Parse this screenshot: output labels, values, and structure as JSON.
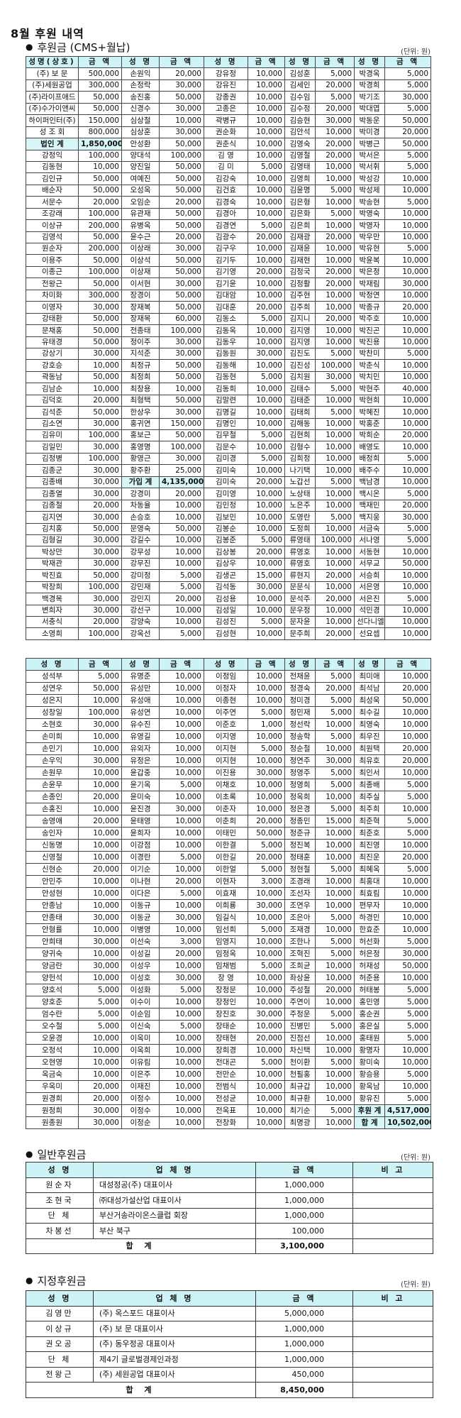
{
  "title": "8월 후원 내역",
  "cms": {
    "heading": "후원금 (CMS+월납)",
    "unit": "(단위: 원)",
    "headers": [
      "성명(상호)",
      "금 액",
      "성 명",
      "금 액",
      "성 명",
      "금 액",
      "성 명",
      "금 액",
      "성 명",
      "금 액"
    ],
    "headers2": [
      "성 명",
      "금 액",
      "성 명",
      "금 액",
      "성 명",
      "금 액",
      "성 명",
      "금 액",
      "성 명",
      "금 액"
    ],
    "rows1": [
      [
        "(주) 보 문",
        "500,000",
        "손원익",
        "20,000",
        "강유정",
        "10,000",
        "김성훈",
        "5,000",
        "박경옥",
        "5,000"
      ],
      [
        "(주)세원공업",
        "300,000",
        "손정락",
        "30,000",
        "강유진",
        "10,000",
        "김세인",
        "20,000",
        "박경희",
        "5,000"
      ],
      [
        "(주)라이프애드",
        "50,000",
        "송진홍",
        "50,000",
        "강종권",
        "10,000",
        "김수임",
        "5,000",
        "박기조",
        "30,000"
      ],
      [
        "(주)수가이앤씨",
        "50,000",
        "신경수",
        "30,000",
        "고종은",
        "10,000",
        "김수정",
        "20,000",
        "박대엽",
        "5,000"
      ],
      [
        "하이퍼인터(주)",
        "150,000",
        "심상철",
        "10,000",
        "곽병규",
        "10,000",
        "김승현",
        "30,000",
        "박동운",
        "50,000"
      ],
      [
        "성 조 회",
        "800,000",
        "심상훈",
        "30,000",
        "권순화",
        "10,000",
        "김안석",
        "10,000",
        "박미경",
        "20,000"
      ],
      [
        "법인 계",
        "1,850,000",
        "안성환",
        "50,000",
        "권춘식",
        "10,000",
        "김영숙",
        "20,000",
        "박병근",
        "50,000"
      ],
      [
        "강정익",
        "100,000",
        "양대석",
        "100,000",
        "김 영",
        "10,000",
        "김영철",
        "20,000",
        "박서은",
        "5,000"
      ],
      [
        "김동현",
        "10,000",
        "양진일",
        "50,000",
        "김 미",
        "5,000",
        "김영태",
        "10,000",
        "박서휘",
        "5,000"
      ],
      [
        "김인규",
        "50,000",
        "여예진",
        "50,000",
        "김강숙",
        "10,000",
        "김영희",
        "10,000",
        "박성강",
        "10,000"
      ],
      [
        "배순자",
        "50,000",
        "오성옥",
        "50,000",
        "김건효",
        "10,000",
        "김윤명",
        "5,000",
        "박성제",
        "10,000"
      ],
      [
        "서문수",
        "20,000",
        "오임순",
        "20,000",
        "김경숙",
        "10,000",
        "김은형",
        "10,000",
        "박송현",
        "5,000"
      ],
      [
        "조강래",
        "100,000",
        "유관재",
        "50,000",
        "김경아",
        "10,000",
        "김은화",
        "5,000",
        "박영숙",
        "10,000"
      ],
      [
        "이상규",
        "200,000",
        "유병옥",
        "50,000",
        "김경연",
        "5,000",
        "김은희",
        "10,000",
        "박영자",
        "10,000"
      ],
      [
        "김영석",
        "50,000",
        "윤수근",
        "20,000",
        "김광수",
        "20,000",
        "김재광",
        "20,000",
        "박우만",
        "10,000"
      ],
      [
        "원순자",
        "200,000",
        "이상래",
        "30,000",
        "김구우",
        "10,000",
        "김재윤",
        "10,000",
        "박유현",
        "5,000"
      ],
      [
        "이용주",
        "50,000",
        "이상석",
        "50,000",
        "김기두",
        "10,000",
        "김재현",
        "10,000",
        "박윤복",
        "10,000"
      ],
      [
        "이종근",
        "100,000",
        "이상재",
        "50,000",
        "김기영",
        "20,000",
        "김정국",
        "20,000",
        "박은정",
        "10,000"
      ],
      [
        "전왕근",
        "50,000",
        "이서현",
        "30,000",
        "김기윤",
        "10,000",
        "김정활",
        "20,000",
        "박재림",
        "30,000"
      ],
      [
        "차미화",
        "300,000",
        "장경이",
        "50,000",
        "김대암",
        "10,000",
        "김주현",
        "10,000",
        "박정연",
        "10,000"
      ],
      [
        "이영자",
        "30,000",
        "장재복",
        "50,000",
        "김대훈",
        "20,000",
        "김주희",
        "10,000",
        "박종규",
        "20,000"
      ],
      [
        "강태환",
        "50,000",
        "장재목",
        "60,000",
        "김동소",
        "5,000",
        "김지니",
        "20,000",
        "박주호",
        "10,000"
      ],
      [
        "문채홍",
        "50,000",
        "전종태",
        "100,000",
        "김동옥",
        "10,000",
        "김지영",
        "10,000",
        "박진곤",
        "10,000"
      ],
      [
        "유태경",
        "50,000",
        "정이주",
        "30,000",
        "김동우",
        "10,000",
        "김지영",
        "10,000",
        "박진용",
        "10,000"
      ],
      [
        "강상기",
        "30,000",
        "지석준",
        "30,000",
        "김동원",
        "30,000",
        "김진도",
        "5,000",
        "박찬미",
        "5,000"
      ],
      [
        "강호승",
        "10,000",
        "최정규",
        "50,000",
        "김동해",
        "10,000",
        "김진성",
        "100,000",
        "박춘식",
        "10,000"
      ],
      [
        "곽동남",
        "50,000",
        "최정희",
        "50,000",
        "김동현",
        "5,000",
        "김치원",
        "30,000",
        "박치민",
        "10,000"
      ],
      [
        "김남순",
        "10,000",
        "최창용",
        "10,000",
        "김동희",
        "10,000",
        "김태수",
        "5,000",
        "박현주",
        "40,000"
      ],
      [
        "김덕호",
        "20,000",
        "최형택",
        "50,000",
        "김말련",
        "10,000",
        "김태준",
        "10,000",
        "박현희",
        "10,000"
      ],
      [
        "김석준",
        "50,000",
        "한상우",
        "30,000",
        "김명길",
        "10,000",
        "김태희",
        "5,000",
        "박혜진",
        "10,000"
      ],
      [
        "김소연",
        "30,000",
        "홍귀연",
        "150,000",
        "김명인",
        "10,000",
        "김해동",
        "10,000",
        "박홍준",
        "10,000"
      ],
      [
        "김유미",
        "100,000",
        "홍보근",
        "50,000",
        "김무철",
        "5,000",
        "김현희",
        "10,000",
        "박희순",
        "20,000"
      ],
      [
        "김일민",
        "30,000",
        "홍영명",
        "100,000",
        "김문수",
        "10,000",
        "김형수",
        "10,000",
        "배영도",
        "10,000"
      ],
      [
        "김정병",
        "100,000",
        "황영근",
        "30,000",
        "김미경",
        "5,000",
        "김희정",
        "10,000",
        "배정희",
        "5,000"
      ],
      [
        "김종군",
        "30,000",
        "황주환",
        "25,000",
        "김미숙",
        "10,000",
        "나기택",
        "10,000",
        "배주수",
        "10,000"
      ],
      [
        "김종배",
        "30,000",
        "가입 계",
        "4,135,000",
        "김미숙",
        "20,000",
        "노갑선",
        "5,000",
        "백남경",
        "10,000"
      ],
      [
        "김종열",
        "30,000",
        "강경미",
        "20,000",
        "김미영",
        "10,000",
        "노상태",
        "10,000",
        "백시온",
        "5,000"
      ],
      [
        "김종철",
        "20,000",
        "차동율",
        "10,000",
        "김민정",
        "10,000",
        "노은주",
        "10,000",
        "백재민",
        "20,000"
      ],
      [
        "김지연",
        "30,000",
        "손승호",
        "10,000",
        "김보민",
        "10,000",
        "도영란",
        "5,000",
        "백지웅",
        "30,000"
      ],
      [
        "김치홍",
        "50,000",
        "문영숙",
        "50,000",
        "김봉순",
        "10,000",
        "도정희",
        "10,000",
        "서금숙",
        "5,000"
      ],
      [
        "김형길",
        "30,000",
        "강길수",
        "10,000",
        "김봉준",
        "5,000",
        "류영태",
        "100,000",
        "서나영",
        "5,000"
      ],
      [
        "박상만",
        "30,000",
        "강무성",
        "10,000",
        "김상봉",
        "20,000",
        "류영호",
        "10,000",
        "서동현",
        "10,000"
      ],
      [
        "박재관",
        "30,000",
        "강무진",
        "10,000",
        "김상우",
        "10,000",
        "류영호",
        "10,000",
        "서무교",
        "50,000"
      ],
      [
        "박진효",
        "50,000",
        "강미정",
        "5,000",
        "김생곤",
        "15,000",
        "류현지",
        "20,000",
        "서승희",
        "10,000"
      ],
      [
        "박창희",
        "100,000",
        "강민재",
        "5,000",
        "김석동",
        "30,000",
        "문문식",
        "10,000",
        "서은영",
        "10,000"
      ],
      [
        "백경목",
        "30,000",
        "강민지",
        "20,000",
        "김성용",
        "10,000",
        "문석주",
        "20,000",
        "서은진",
        "5,000"
      ],
      [
        "변희자",
        "30,000",
        "강선구",
        "10,000",
        "김성일",
        "10,000",
        "문우정",
        "10,000",
        "석민경",
        "10,000"
      ],
      [
        "서충식",
        "20,000",
        "강양숙",
        "10,000",
        "김성진",
        "5,000",
        "문자윤",
        "10,000",
        "선다니엘",
        "10,000"
      ],
      [
        "소영희",
        "100,000",
        "강옥선",
        "5,000",
        "김성현",
        "10,000",
        "문주희",
        "20,000",
        "선요셉",
        "10,000"
      ]
    ],
    "rows2": [
      [
        "성석부",
        "5,000",
        "유명준",
        "10,000",
        "이정임",
        "10,000",
        "전채윤",
        "5,000",
        "최미애",
        "10,000"
      ],
      [
        "성연우",
        "50,000",
        "유성만",
        "10,000",
        "이정자",
        "10,000",
        "정경숙",
        "20,000",
        "최석남",
        "20,000"
      ],
      [
        "성은지",
        "10,000",
        "유성애",
        "10,000",
        "이종현",
        "10,000",
        "정미경",
        "5,000",
        "최성욱",
        "50,000"
      ],
      [
        "성창일",
        "100,000",
        "유성연",
        "10,000",
        "이주연",
        "5,000",
        "정민재",
        "5,000",
        "최수길",
        "10,000"
      ],
      [
        "소현호",
        "30,000",
        "유수진",
        "10,000",
        "이준호",
        "1,000",
        "정선락",
        "10,000",
        "최영숙",
        "10,000"
      ],
      [
        "손미희",
        "10,000",
        "유영길",
        "10,000",
        "이지영",
        "10,000",
        "정송학",
        "5,000",
        "최우진",
        "10,000"
      ],
      [
        "손민기",
        "10,000",
        "유외자",
        "10,000",
        "이지현",
        "5,000",
        "정순철",
        "10,000",
        "최원택",
        "20,000"
      ],
      [
        "손우익",
        "30,000",
        "유정은",
        "10,000",
        "이지현",
        "10,000",
        "정연주",
        "30,000",
        "최유호",
        "20,000"
      ],
      [
        "손원무",
        "10,000",
        "윤갑중",
        "10,000",
        "이진용",
        "30,000",
        "정영주",
        "5,000",
        "최인서",
        "10,000"
      ],
      [
        "손윤무",
        "10,000",
        "윤기옥",
        "5,000",
        "이채호",
        "10,000",
        "정영희",
        "5,000",
        "최종배",
        "5,000"
      ],
      [
        "손종인",
        "20,000",
        "윤미숙",
        "10,000",
        "이초록",
        "10,000",
        "정옥희",
        "10,000",
        "최주실",
        "5,000"
      ],
      [
        "손홍진",
        "10,000",
        "윤진경",
        "30,000",
        "이춘자",
        "10,000",
        "정은경",
        "5,000",
        "최주희",
        "10,000"
      ],
      [
        "송영애",
        "20,000",
        "윤태영",
        "10,000",
        "이춘희",
        "20,000",
        "정종민",
        "15,000",
        "최준혁",
        "5,000"
      ],
      [
        "송인자",
        "10,000",
        "윤희자",
        "10,000",
        "이태민",
        "50,000",
        "정준규",
        "10,000",
        "최준호",
        "5,000"
      ],
      [
        "신동명",
        "10,000",
        "이강점",
        "10,000",
        "이한결",
        "5,000",
        "정진복",
        "10,000",
        "최진영",
        "10,000"
      ],
      [
        "신영철",
        "10,000",
        "이경란",
        "5,000",
        "이한길",
        "20,000",
        "정태훈",
        "10,000",
        "최진운",
        "20,000"
      ],
      [
        "신현순",
        "20,000",
        "이기순",
        "10,000",
        "이한얼",
        "5,000",
        "정현철",
        "5,000",
        "최혜옥",
        "5,000"
      ],
      [
        "안민주",
        "10,000",
        "이나현",
        "20,000",
        "이현자",
        "3,000",
        "조경래",
        "10,000",
        "최홍대",
        "10,000"
      ],
      [
        "안성현",
        "10,000",
        "이다은",
        "5,000",
        "이효재",
        "10,000",
        "조선자",
        "10,000",
        "최효림",
        "10,000"
      ],
      [
        "안종남",
        "10,000",
        "이동규",
        "10,000",
        "이희룡",
        "30,000",
        "조연우",
        "10,000",
        "편무자",
        "10,000"
      ],
      [
        "안종태",
        "30,000",
        "이동균",
        "30,000",
        "임길식",
        "10,000",
        "조은아",
        "5,000",
        "하경민",
        "10,000"
      ],
      [
        "안형률",
        "10,000",
        "이병영",
        "10,000",
        "임선희",
        "5,000",
        "조재경",
        "10,000",
        "한효준",
        "10,000"
      ],
      [
        "안희태",
        "30,000",
        "이선숙",
        "3,000",
        "임영지",
        "10,000",
        "조한나",
        "5,000",
        "허선화",
        "5,000"
      ],
      [
        "양귀숙",
        "10,000",
        "이성길",
        "20,000",
        "임정옥",
        "10,000",
        "조혁진",
        "5,000",
        "허은정",
        "30,000"
      ],
      [
        "양금란",
        "30,000",
        "이성우",
        "10,000",
        "임채범",
        "5,000",
        "조희균",
        "10,000",
        "허재성",
        "50,000"
      ],
      [
        "양헌석",
        "10,000",
        "이성호",
        "30,000",
        "장 영",
        "10,000",
        "좌상윤",
        "10,000",
        "허준용",
        "10,000"
      ],
      [
        "양호석",
        "5,000",
        "이성화",
        "5,000",
        "장정문",
        "10,000",
        "주성철",
        "20,000",
        "허태봉",
        "5,000"
      ],
      [
        "양호준",
        "5,000",
        "이수이",
        "10,000",
        "장정인",
        "10,000",
        "주연이",
        "10,000",
        "홍민영",
        "5,000"
      ],
      [
        "엄수란",
        "5,000",
        "이순임",
        "10,000",
        "장진호",
        "30,000",
        "주정운",
        "5,000",
        "홍순권",
        "5,000"
      ],
      [
        "오수철",
        "5,000",
        "이신숙",
        "5,000",
        "장태순",
        "10,000",
        "진병민",
        "5,000",
        "홍은실",
        "5,000"
      ],
      [
        "오윤경",
        "10,000",
        "이옥미",
        "10,000",
        "장태현",
        "20,000",
        "진점선",
        "10,000",
        "홍태원",
        "5,000"
      ],
      [
        "오정석",
        "10,000",
        "이옥희",
        "10,000",
        "장희경",
        "10,000",
        "차신택",
        "10,000",
        "황명자",
        "10,000"
      ],
      [
        "오현영",
        "10,000",
        "이유림",
        "10,000",
        "전대곤",
        "5,000",
        "천이환",
        "5,000",
        "황미숙",
        "10,000"
      ],
      [
        "옥금숙",
        "10,000",
        "이은주",
        "10,000",
        "전만순",
        "10,000",
        "천필홍",
        "10,000",
        "황승용",
        "5,000"
      ],
      [
        "우옥미",
        "20,000",
        "이재진",
        "10,000",
        "전범식",
        "10,000",
        "최규갑",
        "10,000",
        "황옥남",
        "10,000"
      ],
      [
        "원경희",
        "20,000",
        "이정수",
        "10,000",
        "전성균",
        "10,000",
        "최규환",
        "10,000",
        "황유진",
        "5,000"
      ],
      [
        "원정희",
        "30,000",
        "이정수",
        "10,000",
        "전옥표",
        "10,000",
        "최기순",
        "5,000",
        "후원 계",
        "4,517,000"
      ],
      [
        "원종원",
        "30,000",
        "이정순",
        "10,000",
        "전창화",
        "10,000",
        "최명광",
        "10,000",
        "합 계",
        "10,502,000"
      ]
    ]
  },
  "general": {
    "heading": "일반후원금",
    "unit": "(단위: 원)",
    "headers": [
      "성 명",
      "업 체 명",
      "금   액",
      "비  고"
    ],
    "rows": [
      [
        "원순자",
        "대성정공(주) 대표이사",
        "1,000,000",
        ""
      ],
      [
        "조현국",
        "㈜대성가설산업  대표이사",
        "1,000,000",
        ""
      ],
      [
        "단   체",
        "부산거송라이온스클럽 회장",
        "1,000,000",
        ""
      ],
      [
        "차봉선",
        "부산 북구",
        "100,000",
        ""
      ]
    ],
    "total_label": "합     계",
    "total": "3,100,000"
  },
  "designated": {
    "heading": "지정후원금",
    "unit": "(단위: 원)",
    "headers": [
      "성 명",
      "업 체 명",
      "금   액",
      "비  고"
    ],
    "rows": [
      [
        "김영만",
        "(주) 옥스포드 대표이사",
        "5,000,000",
        ""
      ],
      [
        "이상규",
        "(주) 보 문 대표이사",
        "1,000,000",
        ""
      ],
      [
        "권오공",
        "(주) 동우정공 대표이사",
        "1,000,000",
        ""
      ],
      [
        "단   체",
        "제4기 글로벌경제인과정",
        "1,000,000",
        ""
      ],
      [
        "전왕근",
        "(주) 세원공업 대표이사",
        "450,000",
        ""
      ]
    ],
    "total_label": "합     계",
    "total": "8,450,000"
  },
  "colors": {
    "header_bg": "#cdf3f6",
    "sum_bg": "#d8f6f8"
  }
}
